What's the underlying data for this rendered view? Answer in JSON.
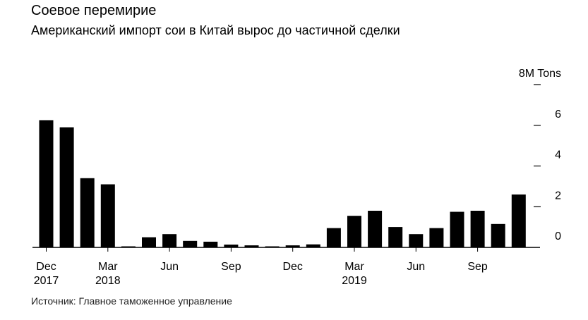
{
  "header": {
    "title": "Соевое перемирие",
    "subtitle": "Американский импорт сои в Китай вырос до частичной сделки"
  },
  "footer": {
    "source": "Источник: Главное таможенное управление"
  },
  "chart_data": {
    "type": "bar",
    "title": "Соевое перемирие",
    "subtitle": "Американский импорт сои в Китай вырос до частичной сделки",
    "unit_label": "8M Tons",
    "y_ticks": [
      "8M Tons",
      "6",
      "4",
      "2",
      "0"
    ],
    "ylim": [
      0,
      8
    ],
    "y_axis_position": "right",
    "grid": false,
    "x_tick_labels": [
      {
        "month": "Dec",
        "year": "2017",
        "index": 0
      },
      {
        "month": "Mar",
        "year": "2018",
        "index": 3
      },
      {
        "month": "Jun",
        "year": "",
        "index": 6
      },
      {
        "month": "Sep",
        "year": "",
        "index": 9
      },
      {
        "month": "Dec",
        "year": "",
        "index": 12
      },
      {
        "month": "Mar",
        "year": "2019",
        "index": 15
      },
      {
        "month": "Jun",
        "year": "",
        "index": 18
      },
      {
        "month": "Sep",
        "year": "",
        "index": 21
      }
    ],
    "categories": [
      "2017-12",
      "2018-01",
      "2018-02",
      "2018-03",
      "2018-04",
      "2018-05",
      "2018-06",
      "2018-07",
      "2018-08",
      "2018-09",
      "2018-10",
      "2018-11",
      "2018-12",
      "2019-01",
      "2019-02",
      "2019-03",
      "2019-04",
      "2019-05",
      "2019-06",
      "2019-07",
      "2019-08",
      "2019-09",
      "2019-10",
      "2019-11"
    ],
    "values": [
      6.25,
      5.9,
      3.4,
      3.1,
      0.05,
      0.5,
      0.65,
      0.32,
      0.28,
      0.14,
      0.1,
      0.04,
      0.1,
      0.15,
      0.95,
      1.55,
      1.8,
      1.0,
      0.65,
      0.95,
      1.75,
      1.8,
      1.15,
      2.6
    ],
    "bar_color": "#000000"
  }
}
